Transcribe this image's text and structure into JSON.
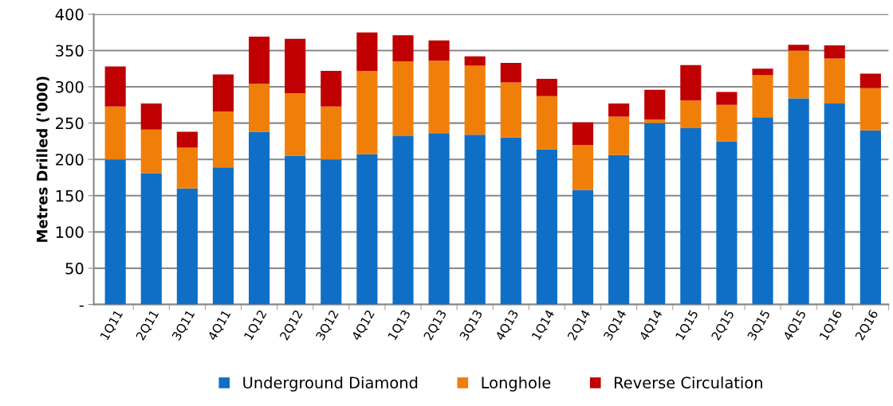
{
  "chart_data": {
    "type": "bar",
    "stacked": true,
    "ylabel": "Metres Drilled ('000)",
    "categories": [
      "1Q11",
      "2Q11",
      "3Q11",
      "4Q11",
      "1Q12",
      "2Q12",
      "3Q12",
      "4Q12",
      "1Q13",
      "2Q13",
      "3Q13",
      "4Q13",
      "1Q14",
      "2Q14",
      "3Q14",
      "4Q14",
      "1Q15",
      "2Q15",
      "3Q15",
      "4Q15",
      "1Q16",
      "2Q16"
    ],
    "series": [
      {
        "name": "Underground Diamond",
        "color": "#0f6fc6",
        "values": [
          200,
          181,
          160,
          189,
          238,
          205,
          200,
          207,
          232,
          236,
          234,
          230,
          214,
          158,
          206,
          250,
          243,
          225,
          258,
          284,
          277,
          240
        ]
      },
      {
        "name": "Longhole",
        "color": "#f07f09",
        "values": [
          73,
          60,
          56,
          77,
          66,
          86,
          73,
          115,
          103,
          100,
          95,
          76,
          73,
          62,
          53,
          5,
          38,
          50,
          58,
          66,
          62,
          58
        ]
      },
      {
        "name": "Reverse Circulation",
        "color": "#c00000",
        "values": [
          55,
          36,
          22,
          51,
          65,
          75,
          49,
          53,
          36,
          28,
          13,
          27,
          24,
          31,
          18,
          41,
          49,
          18,
          9,
          8,
          18,
          20
        ]
      }
    ],
    "ylim": [
      0,
      400
    ],
    "yticks": [
      {
        "value": 0,
        "label": "-"
      },
      50,
      100,
      150,
      200,
      250,
      300,
      350,
      400
    ],
    "grid": "y",
    "legend": "bottom"
  }
}
